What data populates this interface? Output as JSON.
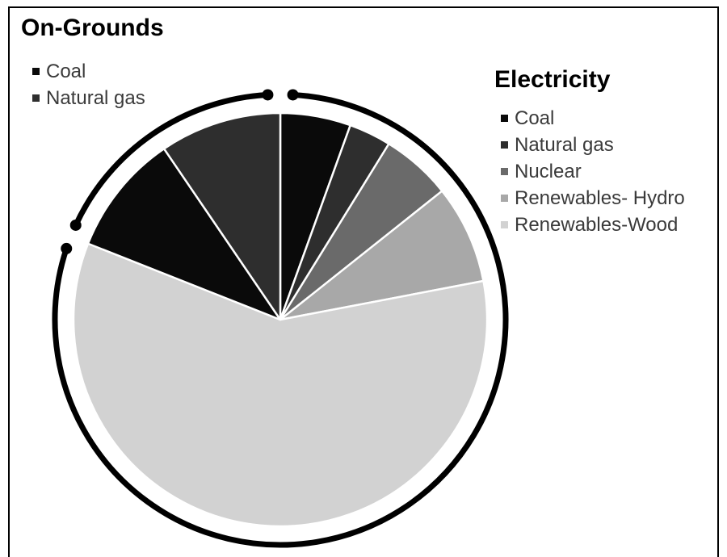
{
  "chart_data": {
    "type": "pie",
    "groups": [
      {
        "title": "On-Grounds",
        "legend": [
          {
            "label": "Coal",
            "color": "#0a0a0a"
          },
          {
            "label": "Natural gas",
            "color": "#2e2e2e"
          }
        ]
      },
      {
        "title": "Electricity",
        "legend": [
          {
            "label": "Coal",
            "color": "#0a0a0a"
          },
          {
            "label": "Natural gas",
            "color": "#2e2e2e"
          },
          {
            "label": "Nuclear",
            "color": "#6a6a6a"
          },
          {
            "label": "Renewables- Hydro",
            "color": "#a8a8a8"
          },
          {
            "label": "Renewables-Wood",
            "color": "#d2d2d2"
          }
        ]
      }
    ],
    "slices": [
      {
        "group": "Electricity",
        "label": "Coal",
        "value": 5.5,
        "color": "#0a0a0a"
      },
      {
        "group": "Electricity",
        "label": "Natural gas",
        "value": 3.3,
        "color": "#2e2e2e"
      },
      {
        "group": "Electricity",
        "label": "Nuclear",
        "value": 5.5,
        "color": "#6a6a6a"
      },
      {
        "group": "Electricity",
        "label": "Renewables- Hydro",
        "value": 7.7,
        "color": "#a8a8a8"
      },
      {
        "group": "Electricity",
        "label": "Renewables-Wood",
        "value": 59.0,
        "color": "#d2d2d2"
      },
      {
        "group": "On-Grounds",
        "label": "Coal",
        "value": 9.5,
        "color": "#0a0a0a"
      },
      {
        "group": "On-Grounds",
        "label": "Natural gas",
        "value": 9.5,
        "color": "#2e2e2e"
      }
    ],
    "start_angle_deg": 0,
    "direction": "clockwise",
    "legend_position": "top-left and top-right"
  }
}
